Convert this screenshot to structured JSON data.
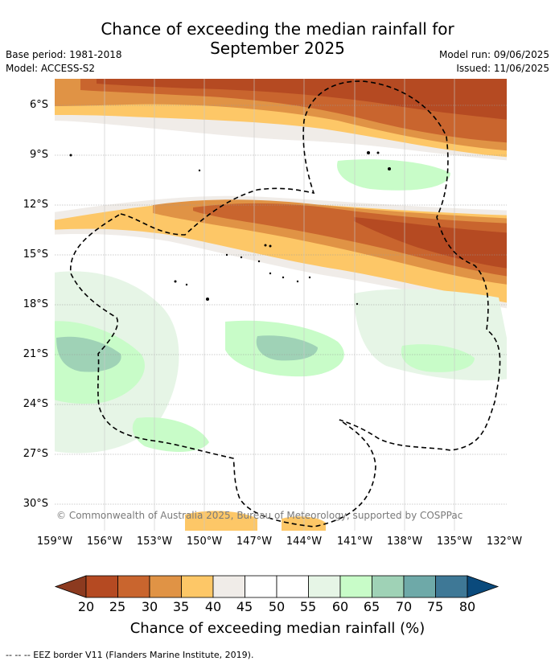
{
  "title_line1": "Chance of exceeding the median rainfall for",
  "title_line2": "September 2025",
  "base_period": "Base period: 1981-2018",
  "model": "Model: ACCESS-S2",
  "model_run": "Model run: 09/06/2025",
  "issued": "Issued: 11/06/2025",
  "lat_labels": [
    "6°S",
    "9°S",
    "12°S",
    "15°S",
    "18°S",
    "21°S",
    "24°S",
    "27°S",
    "30°S"
  ],
  "lon_labels": [
    "159°W",
    "156°W",
    "153°W",
    "150°W",
    "147°W",
    "144°W",
    "141°W",
    "138°W",
    "135°W",
    "132°W"
  ],
  "copyright": "© Commonwealth of Australia 2025, Bureau of Meteorology, supported by COSPPac",
  "colorbar": {
    "ticks": [
      "20",
      "25",
      "30",
      "35",
      "40",
      "45",
      "50",
      "55",
      "60",
      "65",
      "70",
      "75",
      "80"
    ],
    "colors": [
      "#8c3a1f",
      "#b54a22",
      "#c9652e",
      "#e09345",
      "#fdc767",
      "#f0ece8",
      "#ffffff",
      "#ffffff",
      "#e6f5e6",
      "#c8fcc8",
      "#9fd2b6",
      "#6ea9a8",
      "#3e7896",
      "#0a4a7c"
    ],
    "label": "Chance of exceeding median rainfall (%)"
  },
  "legend": "--  --  -- EEZ border V11 (Flanders Marine Institute, 2019)."
}
